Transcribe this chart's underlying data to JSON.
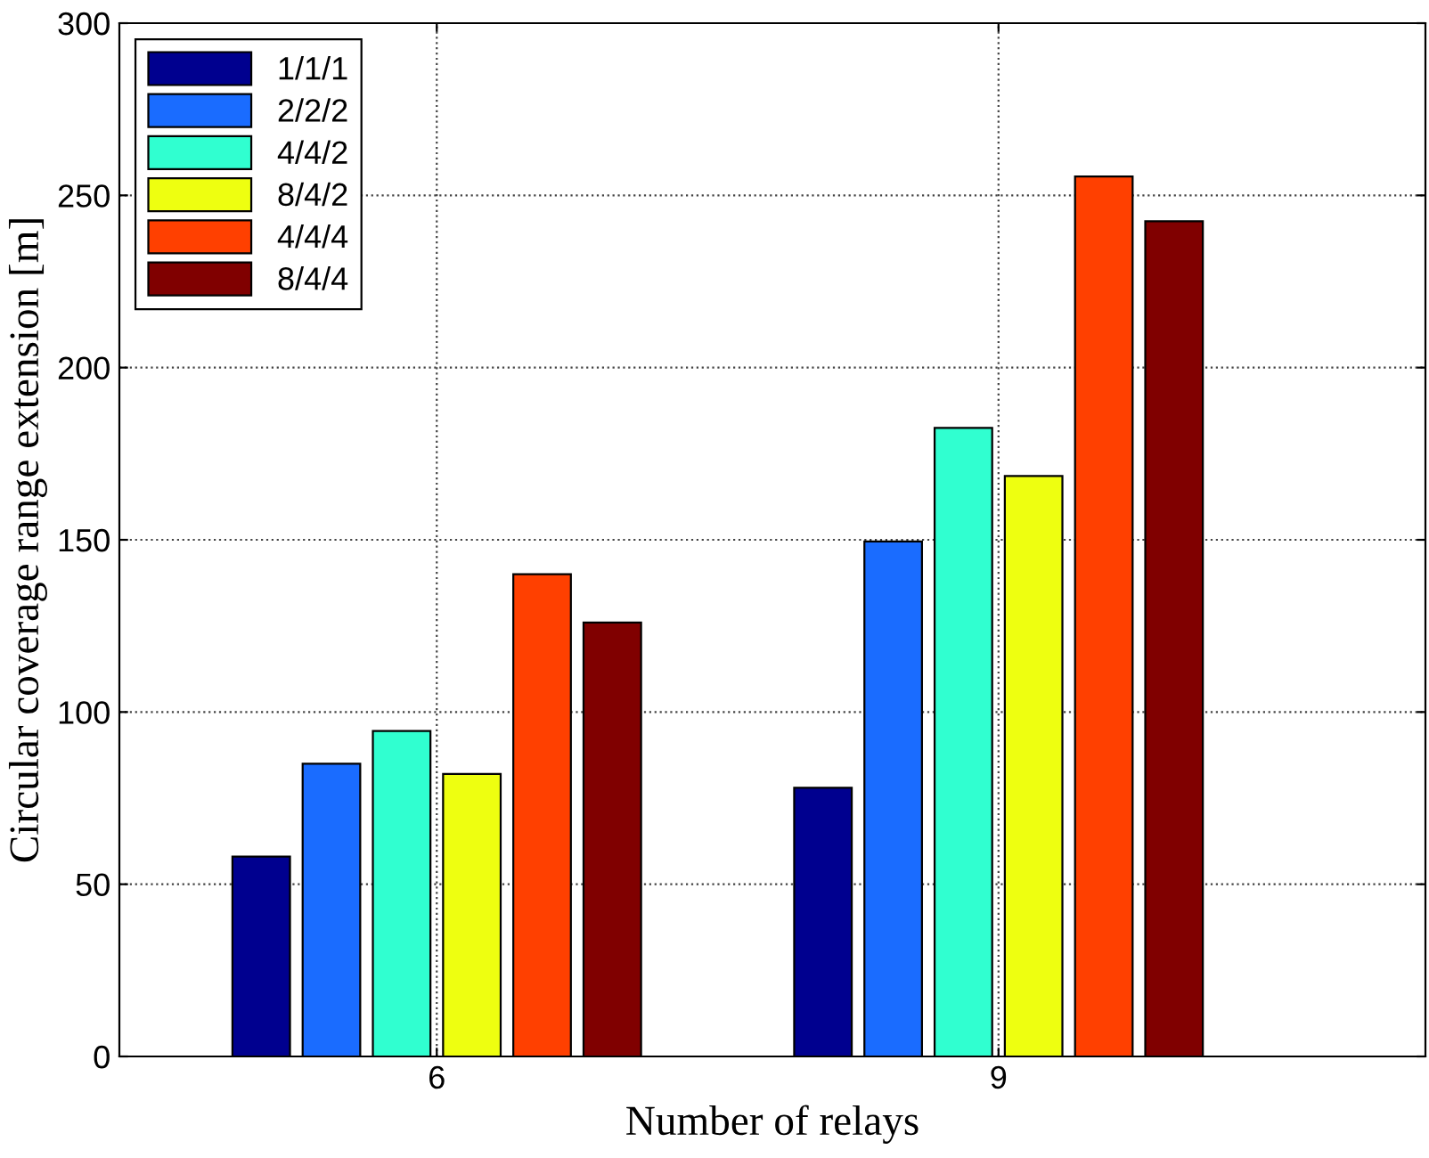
{
  "chart_data": {
    "type": "bar",
    "xlabel": "Number of relays",
    "ylabel": "Circular coverage range extension [m]",
    "categories": [
      "6",
      "9"
    ],
    "series": [
      {
        "name": "1/1/1",
        "color": "#00008f",
        "values": [
          58,
          78
        ]
      },
      {
        "name": "2/2/2",
        "color": "#1a6cff",
        "values": [
          85,
          149.5
        ]
      },
      {
        "name": "4/4/2",
        "color": "#30ffd0",
        "values": [
          94.5,
          182.5
        ]
      },
      {
        "name": "8/4/2",
        "color": "#eeff10",
        "values": [
          82,
          168.5
        ]
      },
      {
        "name": "4/4/4",
        "color": "#ff4000",
        "values": [
          140,
          255.5
        ]
      },
      {
        "name": "8/4/4",
        "color": "#800000",
        "values": [
          126,
          242.5
        ]
      }
    ],
    "ylim": [
      0,
      300
    ],
    "yticks": [
      0,
      50,
      100,
      150,
      200,
      250,
      300
    ],
    "grid": true,
    "legend": "top left"
  }
}
